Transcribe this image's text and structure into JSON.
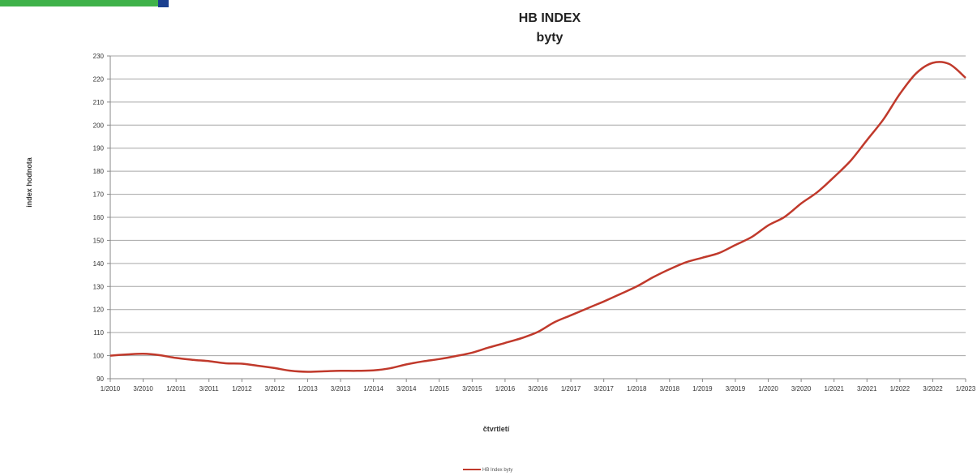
{
  "chart_data": {
    "type": "line",
    "title": "HB INDEX",
    "subtitle": "byty",
    "xlabel": "čtvrtletí",
    "ylabel": "index hodnota",
    "ylim": [
      90,
      230
    ],
    "yticks": [
      90,
      100,
      110,
      120,
      130,
      140,
      150,
      160,
      170,
      180,
      190,
      200,
      210,
      220,
      230
    ],
    "grid": true,
    "legend_position": "bottom",
    "line_color": "#c0392b",
    "x": [
      "1/2010",
      "2/2010",
      "3/2010",
      "4/2010",
      "1/2011",
      "2/2011",
      "3/2011",
      "4/2011",
      "1/2012",
      "2/2012",
      "3/2012",
      "4/2012",
      "1/2013",
      "2/2013",
      "3/2013",
      "4/2013",
      "1/2014",
      "2/2014",
      "3/2014",
      "4/2014",
      "1/2015",
      "2/2015",
      "3/2015",
      "4/2015",
      "1/2016",
      "2/2016",
      "3/2016",
      "4/2016",
      "1/2017",
      "2/2017",
      "3/2017",
      "4/2017",
      "1/2018",
      "2/2018",
      "3/2018",
      "4/2018",
      "1/2019",
      "2/2019",
      "3/2019",
      "4/2019",
      "1/2020",
      "2/2020",
      "3/2020",
      "4/2020",
      "1/2021",
      "2/2021",
      "3/2021",
      "4/2021",
      "1/2022",
      "2/2022",
      "3/2022",
      "4/2022",
      "1/2023"
    ],
    "x_tick_labels": [
      "1/2010",
      "3/2010",
      "1/2011",
      "3/2011",
      "1/2012",
      "3/2012",
      "1/2013",
      "3/2013",
      "1/2014",
      "3/2014",
      "1/2015",
      "3/2015",
      "1/2016",
      "3/2016",
      "1/2017",
      "3/2017",
      "1/2018",
      "3/2018",
      "1/2019",
      "3/2019",
      "1/2020",
      "3/2020",
      "1/2021",
      "3/2021",
      "1/2022",
      "3/2022",
      "1/2023"
    ],
    "series": [
      {
        "name": "HB Index byty",
        "values": [
          100,
          100.5,
          100.8,
          100.2,
          99,
          98.2,
          97.6,
          96.7,
          96.5,
          95.6,
          94.6,
          93.4,
          93,
          93.2,
          93.4,
          93.4,
          93.6,
          94.5,
          96.2,
          97.5,
          98.5,
          99.8,
          101.3,
          103.5,
          105.5,
          107.6,
          110.3,
          114.5,
          117.5,
          120.5,
          123.5,
          126.7,
          130,
          134,
          137.5,
          140.5,
          142.5,
          144.5,
          148,
          151.5,
          156.5,
          160.2,
          166,
          171,
          177.5,
          184.5,
          193.5,
          202.5,
          213.5,
          222.5,
          227,
          226.5,
          220.5
        ]
      }
    ]
  }
}
